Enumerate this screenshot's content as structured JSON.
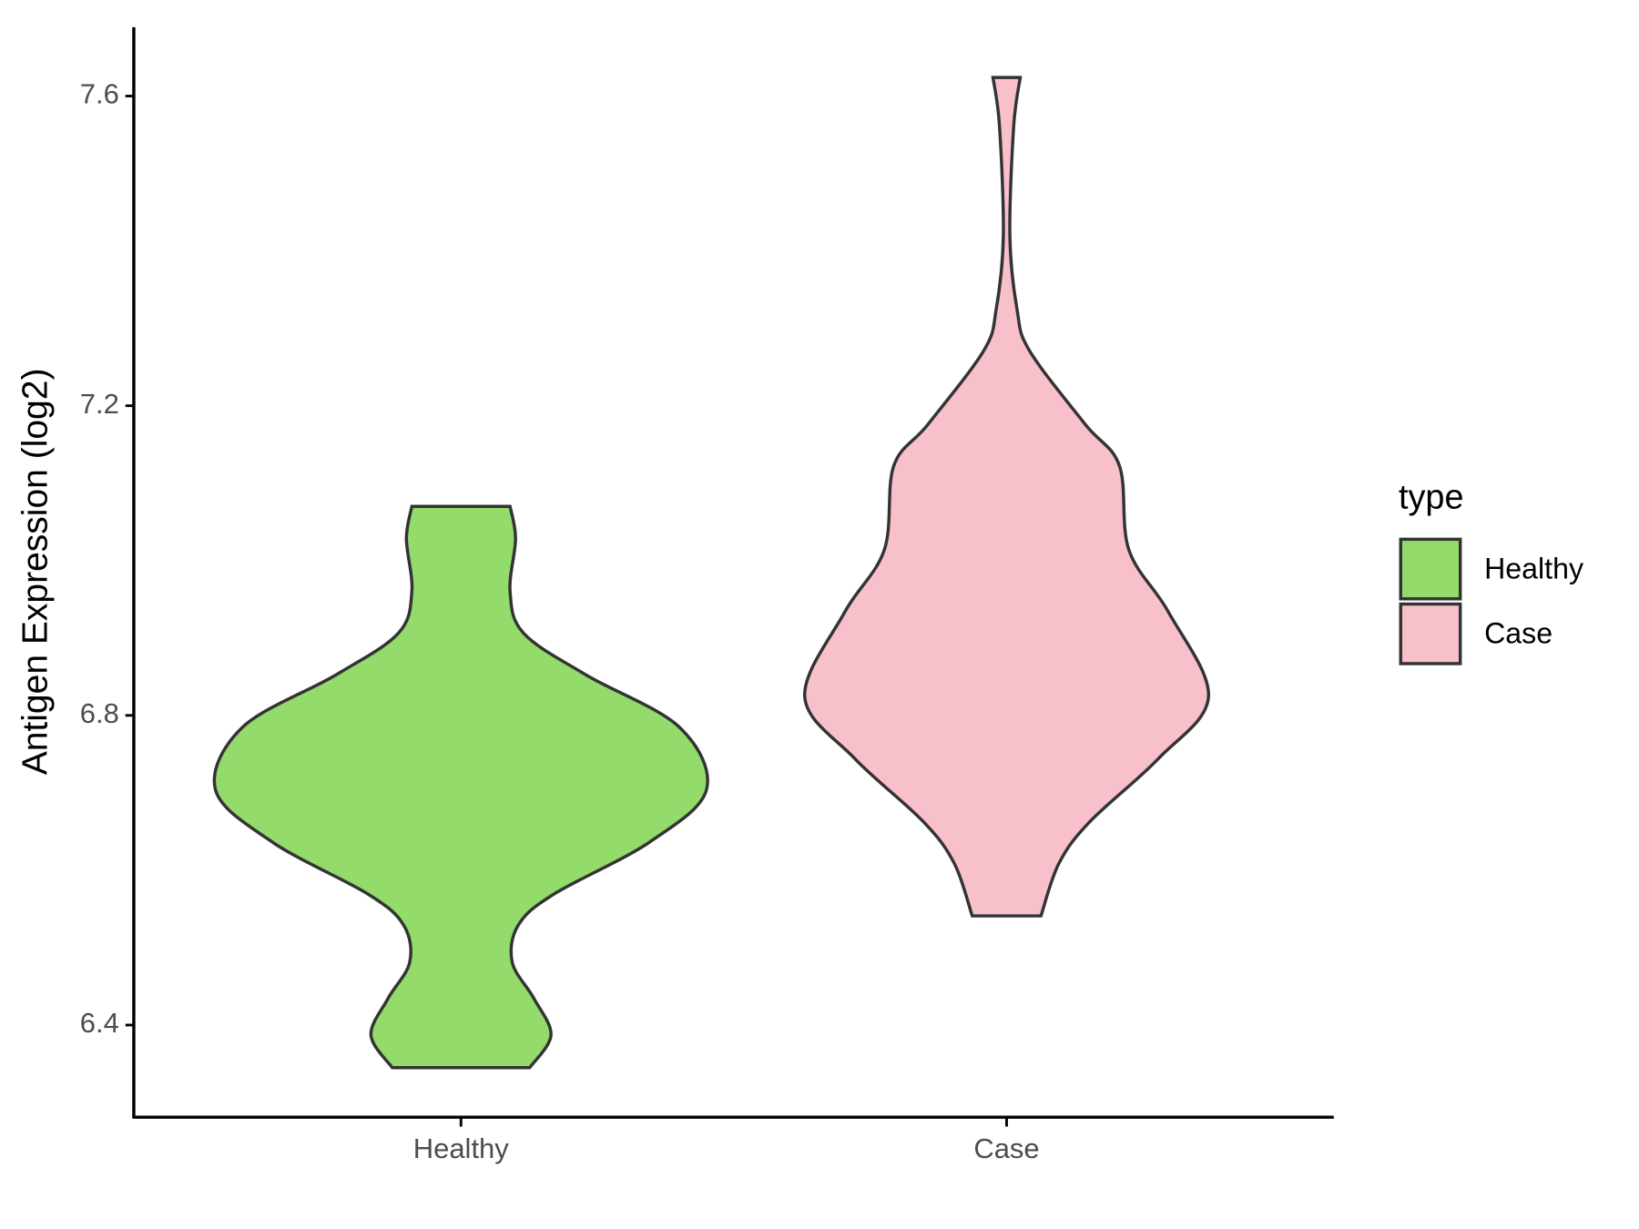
{
  "chart_data": {
    "type": "violin",
    "y_label": "Antigen Expression (log2)",
    "categories": [
      "Healthy",
      "Case"
    ],
    "series": [
      {
        "name": "Healthy",
        "color": "#93db6b",
        "y": [
          7.07,
          7.028,
          6.96,
          6.906,
          6.852,
          6.785,
          6.704,
          6.636,
          6.569,
          6.529,
          6.481,
          6.434,
          6.387,
          6.345
        ],
        "density": [
          0.09,
          0.1,
          0.09,
          0.115,
          0.23,
          0.4,
          0.45,
          0.345,
          0.17,
          0.105,
          0.094,
          0.134,
          0.165,
          0.126
        ]
      },
      {
        "name": "Case",
        "color": "#f8c0cb",
        "y": [
          7.624,
          7.561,
          7.419,
          7.325,
          7.271,
          7.176,
          7.122,
          7.014,
          6.933,
          6.824,
          6.744,
          6.663,
          6.609,
          6.541
        ],
        "density": [
          0.025,
          0.013,
          0.006,
          0.019,
          0.042,
          0.144,
          0.207,
          0.224,
          0.297,
          0.37,
          0.278,
          0.153,
          0.096,
          0.063
        ]
      }
    ],
    "ylim": [
      6.281,
      7.689
    ],
    "yticks": [
      {
        "value": 6.4,
        "label": "6.4"
      },
      {
        "value": 6.8,
        "label": "6.8"
      },
      {
        "value": 7.2,
        "label": "7.2"
      },
      {
        "value": 7.6,
        "label": "7.6"
      }
    ],
    "legend_title": "type",
    "legend_position": "right"
  }
}
